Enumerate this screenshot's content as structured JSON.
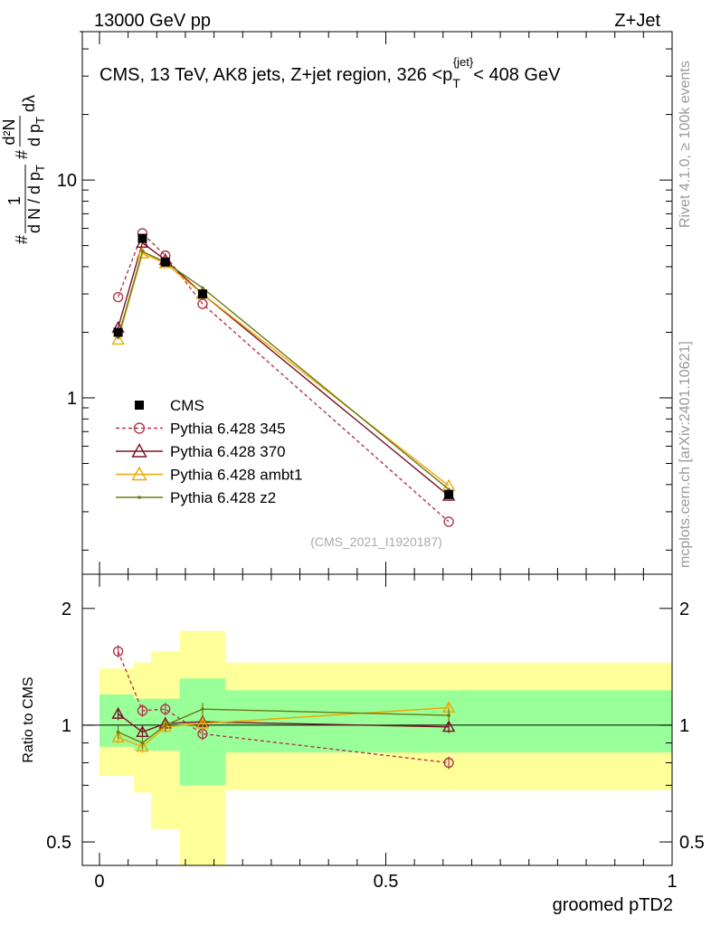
{
  "header": {
    "energy": "13000 GeV pp",
    "process": "Z+Jet"
  },
  "side_labels": {
    "rivet": "Rivet 4.1.0, ≥ 100k events",
    "site": "mcplots.cern.ch [arXiv:2401.10621]"
  },
  "chart_data": [
    {
      "type": "line",
      "panel": "main",
      "title": "CMS, 13 TeV, AK8 jets, Z+jet region, 326 <p_T^{jet}< 408 GeV",
      "title_parts": {
        "pre": "CMS, 13 TeV, AK8 jets, Z+jet region, 326 <p",
        "sub": "T",
        "sup": "{jet}",
        "post": "< 408 GeV"
      },
      "ylabel": "1/dN/dp_T  d²N/dp_T dλ",
      "ylabel_parts": {
        "hash": "#",
        "frac1_num": "1",
        "frac1_den": "d N / d p",
        "frac1_sub": "T",
        "frac2_num": "d²N",
        "frac2_den": "d p",
        "frac2_sub": "T",
        "frac2_tail": "dλ"
      },
      "yscale": "log",
      "ylim": [
        0.155,
        48
      ],
      "xlim": [
        -0.03,
        1.0
      ],
      "y_ticks": [
        1,
        10
      ],
      "y_tick_labels": [
        "1",
        "10"
      ],
      "annotation": "(CMS_2021_I1920187)",
      "x": [
        0.0325,
        0.075,
        0.115,
        0.18,
        0.61
      ],
      "series": [
        {
          "name": "CMS",
          "style": "data",
          "color": "#000000",
          "values": [
            2.0,
            5.4,
            4.2,
            3.0,
            0.36
          ]
        },
        {
          "name": "Pythia 6.428 345",
          "style": "circle-dashed",
          "color": "#b2384e",
          "values": [
            2.9,
            5.7,
            4.5,
            2.7,
            0.27
          ]
        },
        {
          "name": "Pythia 6.428 370",
          "style": "triangle",
          "color": "#7a1126",
          "values": [
            2.1,
            5.15,
            4.3,
            3.0,
            0.355
          ]
        },
        {
          "name": "Pythia 6.428 ambt1",
          "style": "triangle",
          "color": "#f0a800",
          "values": [
            1.85,
            4.6,
            4.15,
            3.0,
            0.395
          ]
        },
        {
          "name": "Pythia 6.428 z2",
          "style": "dot",
          "color": "#6b7a12",
          "values": [
            1.9,
            4.7,
            4.2,
            3.2,
            0.38
          ]
        }
      ]
    },
    {
      "type": "line",
      "panel": "ratio",
      "xlabel": "groomed pTD2",
      "ylabel": "Ratio to CMS",
      "yscale": "log",
      "ylim": [
        0.435,
        2.45
      ],
      "xlim": [
        -0.03,
        1.0
      ],
      "y_ticks": [
        0.5,
        1,
        2
      ],
      "y_tick_labels": [
        "0.5",
        "1",
        "2"
      ],
      "x_ticks": [
        0,
        0.5,
        1
      ],
      "x_tick_labels": [
        "0",
        "0.5",
        "1"
      ],
      "bins": [
        0,
        0.06,
        0.09,
        0.14,
        0.22,
        1.0
      ],
      "band_inner": [
        [
          0.88,
          1.2
        ],
        [
          0.86,
          1.17
        ],
        [
          0.86,
          1.17
        ],
        [
          0.7,
          1.32
        ],
        [
          0.85,
          1.23
        ]
      ],
      "band_outer": [
        [
          0.74,
          1.4
        ],
        [
          0.67,
          1.45
        ],
        [
          0.54,
          1.55
        ],
        [
          0.0,
          1.75
        ],
        [
          0.68,
          1.45
        ]
      ],
      "x": [
        0.0325,
        0.075,
        0.115,
        0.18,
        0.61
      ],
      "series": [
        {
          "name": "Pythia 6.428 345",
          "style": "circle-dashed",
          "color": "#b2384e",
          "values": [
            1.55,
            1.09,
            1.1,
            0.95,
            0.8
          ]
        },
        {
          "name": "Pythia 6.428 370",
          "style": "triangle",
          "color": "#7a1126",
          "values": [
            1.07,
            0.96,
            1.01,
            1.02,
            0.99
          ]
        },
        {
          "name": "Pythia 6.428 ambt1",
          "style": "triangle",
          "color": "#f0a800",
          "values": [
            0.93,
            0.88,
            0.99,
            1.01,
            1.11
          ]
        },
        {
          "name": "Pythia 6.428 z2",
          "style": "dot",
          "color": "#6b7a12",
          "values": [
            0.96,
            0.9,
            1.0,
            1.1,
            1.06
          ]
        }
      ]
    }
  ]
}
